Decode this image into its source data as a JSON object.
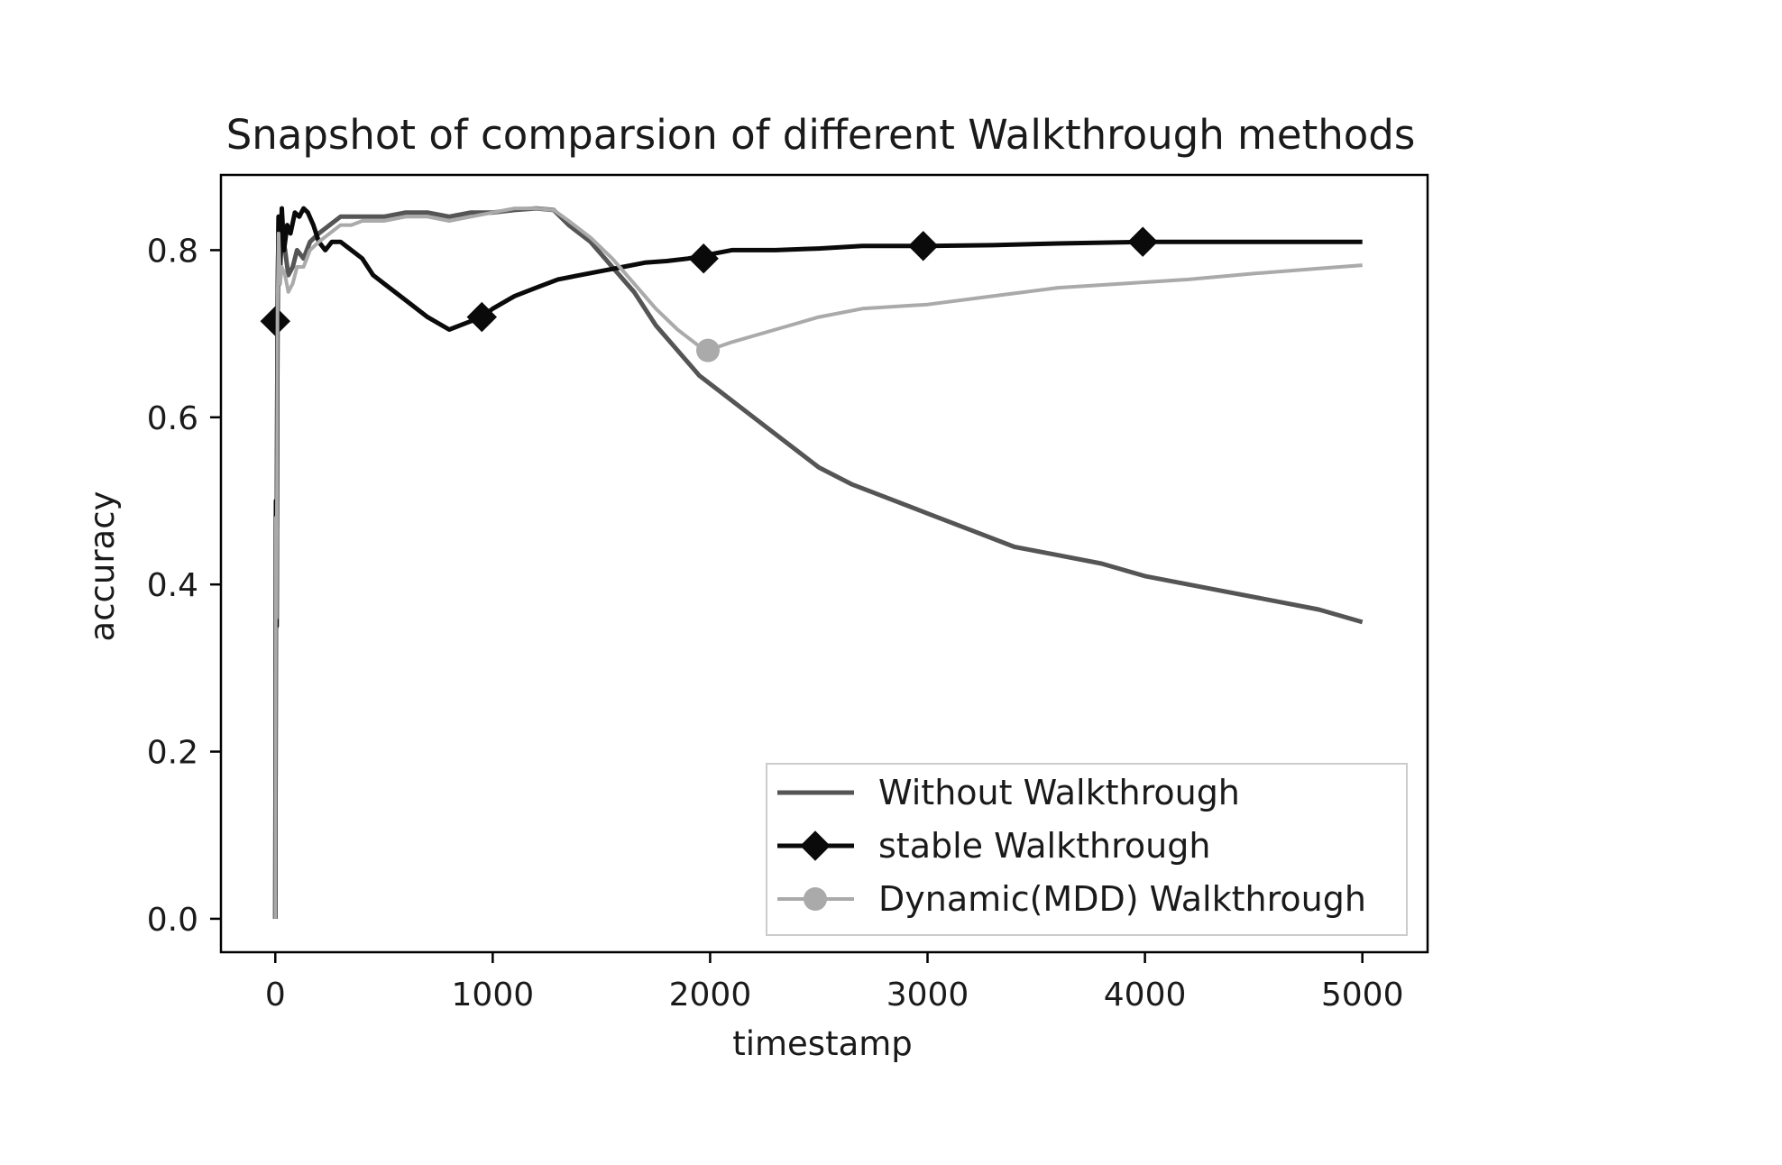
{
  "chart_data": {
    "type": "line",
    "title": "Snapshot of comparsion of different Walkthrough methods",
    "xlabel": "timestamp",
    "ylabel": "accuracy",
    "xlim": [
      -250,
      5300
    ],
    "ylim": [
      -0.04,
      0.89
    ],
    "xticks": [
      0,
      1000,
      2000,
      3000,
      4000,
      5000
    ],
    "xtick_labels": [
      "0",
      "1000",
      "2000",
      "3000",
      "4000",
      "5000"
    ],
    "yticks": [
      0.0,
      0.2,
      0.4,
      0.6,
      0.8
    ],
    "ytick_labels": [
      "0.0",
      "0.2",
      "0.4",
      "0.6",
      "0.8"
    ],
    "legend_position": "lower-right",
    "series": [
      {
        "name": "Without Walkthrough",
        "color": "#555555",
        "marker": "none",
        "x": [
          0,
          3,
          6,
          10,
          15,
          22,
          30,
          45,
          60,
          80,
          100,
          130,
          160,
          200,
          250,
          300,
          350,
          400,
          500,
          600,
          700,
          800,
          900,
          1000,
          1100,
          1200,
          1280,
          1350,
          1450,
          1550,
          1650,
          1750,
          1850,
          1950,
          2050,
          2200,
          2350,
          2500,
          2650,
          2800,
          3000,
          3200,
          3400,
          3600,
          3800,
          4000,
          4200,
          4400,
          4600,
          4800,
          5000
        ],
        "y": [
          0.0,
          0.5,
          0.35,
          0.72,
          0.84,
          0.78,
          0.82,
          0.8,
          0.77,
          0.78,
          0.8,
          0.79,
          0.81,
          0.82,
          0.83,
          0.84,
          0.84,
          0.84,
          0.84,
          0.845,
          0.845,
          0.84,
          0.845,
          0.845,
          0.848,
          0.85,
          0.848,
          0.83,
          0.81,
          0.78,
          0.75,
          0.71,
          0.68,
          0.65,
          0.63,
          0.6,
          0.57,
          0.54,
          0.52,
          0.505,
          0.485,
          0.465,
          0.445,
          0.435,
          0.425,
          0.41,
          0.4,
          0.39,
          0.38,
          0.37,
          0.355
        ]
      },
      {
        "name": "stable Walkthrough",
        "color": "#0a0a0a",
        "marker": "diamond",
        "marker_x": [
          0,
          950,
          1970,
          2980,
          3990
        ],
        "marker_y": [
          0.715,
          0.72,
          0.79,
          0.805,
          0.81
        ],
        "x": [
          0,
          3,
          6,
          10,
          15,
          20,
          30,
          40,
          55,
          70,
          90,
          110,
          130,
          150,
          175,
          200,
          230,
          260,
          300,
          350,
          400,
          450,
          500,
          600,
          700,
          800,
          850,
          900,
          950,
          1000,
          1100,
          1200,
          1300,
          1400,
          1500,
          1600,
          1700,
          1800,
          1900,
          2000,
          2100,
          2300,
          2500,
          2700,
          3000,
          3300,
          3600,
          4000,
          4300,
          4600,
          5000
        ],
        "y": [
          0.0,
          0.5,
          0.35,
          0.72,
          0.84,
          0.76,
          0.85,
          0.8,
          0.83,
          0.82,
          0.845,
          0.84,
          0.85,
          0.845,
          0.83,
          0.81,
          0.8,
          0.81,
          0.81,
          0.8,
          0.79,
          0.77,
          0.76,
          0.74,
          0.72,
          0.705,
          0.71,
          0.715,
          0.72,
          0.73,
          0.745,
          0.755,
          0.765,
          0.77,
          0.775,
          0.78,
          0.785,
          0.787,
          0.79,
          0.795,
          0.8,
          0.8,
          0.802,
          0.805,
          0.805,
          0.806,
          0.808,
          0.81,
          0.81,
          0.81,
          0.81
        ]
      },
      {
        "name": "Dynamic(MDD) Walkthrough",
        "color": "#aaaaaa",
        "marker": "circle",
        "marker_x": [
          1990
        ],
        "marker_y": [
          0.68
        ],
        "x": [
          0,
          3,
          6,
          10,
          15,
          22,
          30,
          45,
          60,
          80,
          100,
          130,
          160,
          200,
          250,
          300,
          350,
          400,
          500,
          600,
          700,
          800,
          900,
          1000,
          1100,
          1200,
          1280,
          1350,
          1450,
          1550,
          1650,
          1750,
          1850,
          1950,
          1990,
          2100,
          2300,
          2500,
          2700,
          3000,
          3300,
          3600,
          3900,
          4200,
          4500,
          4800,
          5000
        ],
        "y": [
          0.0,
          0.48,
          0.36,
          0.73,
          0.82,
          0.76,
          0.78,
          0.77,
          0.75,
          0.76,
          0.78,
          0.78,
          0.8,
          0.81,
          0.82,
          0.83,
          0.83,
          0.835,
          0.835,
          0.84,
          0.84,
          0.835,
          0.84,
          0.845,
          0.85,
          0.85,
          0.848,
          0.835,
          0.815,
          0.79,
          0.76,
          0.73,
          0.705,
          0.685,
          0.68,
          0.69,
          0.705,
          0.72,
          0.73,
          0.735,
          0.745,
          0.755,
          0.76,
          0.765,
          0.772,
          0.778,
          0.782
        ]
      }
    ]
  }
}
